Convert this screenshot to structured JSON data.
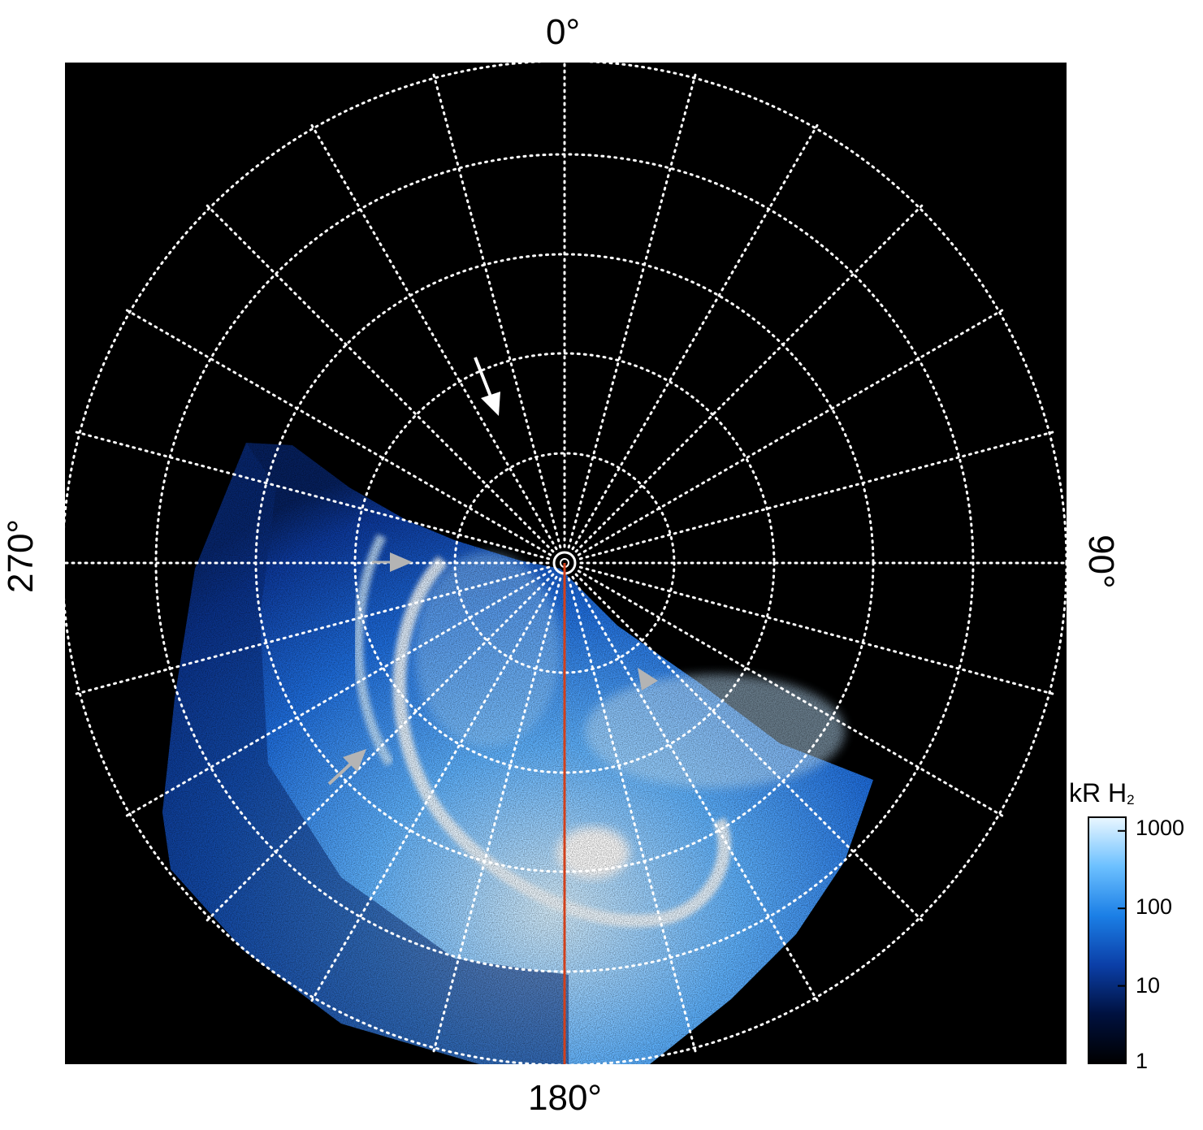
{
  "polar_labels": {
    "top": "0°",
    "right": "90°",
    "bottom": "180°",
    "left": "270°"
  },
  "colorbar": {
    "title": "kR H",
    "title_subscript": "2",
    "ticks": [
      "1000",
      "100",
      "10",
      "1"
    ],
    "tick_values": [
      1000,
      100,
      10,
      1
    ],
    "scale": "log",
    "range": [
      1,
      1500
    ],
    "colors": [
      "#000000",
      "#00113f",
      "#0b3fa8",
      "#1b7fe6",
      "#6cc0ff",
      "#eaf7ff"
    ]
  },
  "grid": {
    "meridian_step_deg": 15,
    "latitude_circles": 5,
    "style": "dotted",
    "color": "#ffffff"
  },
  "colors": {
    "background": "#000000",
    "meridian_line": "#d2401b",
    "arrow_white": "#ffffff",
    "arrow_gray": "#b4b4b4"
  },
  "arrows": [
    {
      "name": "white-arrow-upper",
      "color": "#ffffff"
    },
    {
      "name": "gray-arrow-left",
      "color": "#b4b4b4"
    },
    {
      "name": "gray-arrow-right",
      "color": "#b4b4b4"
    },
    {
      "name": "gray-arrow-lower-left",
      "color": "#b4b4b4"
    }
  ]
}
